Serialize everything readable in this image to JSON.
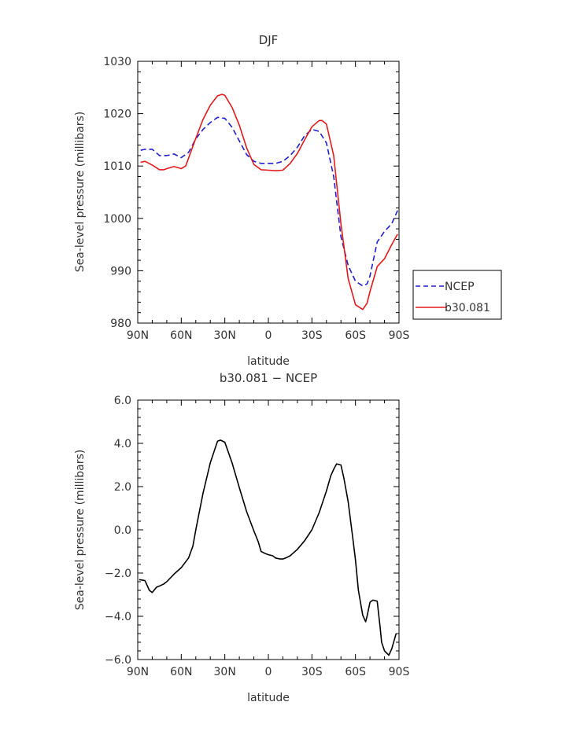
{
  "chart_data": [
    {
      "type": "line",
      "title": "DJF",
      "xlabel": "latitude",
      "ylabel": "Sea-level pressure (millibars)",
      "x_ticks": [
        "90N",
        "60N",
        "30N",
        "0",
        "30S",
        "60S",
        "90S"
      ],
      "xlim": [
        -90,
        90
      ],
      "ylim": [
        980,
        1030
      ],
      "y_ticks": [
        "980",
        "990",
        "1000",
        "1010",
        "1020",
        "1030"
      ],
      "grid": false,
      "legend_position": "right, outside plot",
      "series": [
        {
          "name": "NCEP",
          "color": "#1f1fcc",
          "style": "dashed",
          "x": [
            -88,
            -85,
            -80,
            -75,
            -70,
            -65,
            -60,
            -55,
            -50,
            -45,
            -40,
            -35,
            -30,
            -25,
            -20,
            -15,
            -10,
            -5,
            0,
            5,
            10,
            15,
            20,
            25,
            30,
            35,
            40,
            45,
            50,
            55,
            60,
            65,
            68,
            70,
            75,
            80,
            85,
            89
          ],
          "values": [
            1013.0,
            1013.2,
            1013.2,
            1012.0,
            1012.0,
            1012.3,
            1011.6,
            1012.6,
            1015.2,
            1017.0,
            1018.3,
            1019.3,
            1019.1,
            1017.4,
            1014.8,
            1012.2,
            1010.9,
            1010.5,
            1010.5,
            1010.5,
            1010.9,
            1012.0,
            1013.6,
            1015.8,
            1017.0,
            1016.6,
            1014.4,
            1008.0,
            996.5,
            991.0,
            988.0,
            987.1,
            987.5,
            989.0,
            995.5,
            997.5,
            999.0,
            1001.5
          ]
        },
        {
          "name": "b30.081",
          "color": "#e31a1c",
          "style": "solid",
          "x": [
            -88,
            -85,
            -80,
            -75,
            -72,
            -70,
            -65,
            -60,
            -57,
            -55,
            -50,
            -45,
            -40,
            -35,
            -32,
            -30,
            -25,
            -20,
            -15,
            -10,
            -5,
            0,
            5,
            10,
            15,
            20,
            25,
            30,
            35,
            37,
            40,
            45,
            50,
            55,
            60,
            65,
            68,
            70,
            75,
            80,
            85,
            89
          ],
          "values": [
            1010.7,
            1010.9,
            1010.2,
            1009.3,
            1009.3,
            1009.5,
            1009.9,
            1009.5,
            1010.0,
            1011.5,
            1015.3,
            1018.9,
            1021.6,
            1023.4,
            1023.7,
            1023.5,
            1021.2,
            1017.8,
            1013.5,
            1010.3,
            1009.3,
            1009.2,
            1009.1,
            1009.2,
            1010.5,
            1012.4,
            1015.0,
            1017.5,
            1018.7,
            1018.7,
            1018.0,
            1012.0,
            999.0,
            988.5,
            983.5,
            982.6,
            983.8,
            986.0,
            990.8,
            992.3,
            995.0,
            997.0
          ]
        }
      ]
    },
    {
      "type": "line",
      "title": "b30.081 − NCEP",
      "xlabel": "latitude",
      "ylabel": "Sea-level pressure (millibars)",
      "x_ticks": [
        "90N",
        "60N",
        "30N",
        "0",
        "30S",
        "60S",
        "90S"
      ],
      "xlim": [
        -90,
        90
      ],
      "ylim": [
        -6,
        6
      ],
      "y_ticks": [
        "−6.0",
        "−4.0",
        "−2.0",
        "0.0",
        "2.0",
        "4.0",
        "6.0"
      ],
      "grid": false,
      "series": [
        {
          "color": "#000000",
          "style": "solid",
          "x": [
            -89,
            -85,
            -82,
            -80,
            -77,
            -75,
            -72,
            -70,
            -65,
            -60,
            -55,
            -52,
            -50,
            -45,
            -40,
            -35,
            -33,
            -30,
            -25,
            -20,
            -15,
            -10,
            -7,
            -5,
            -2,
            0,
            3,
            5,
            8,
            10,
            12,
            15,
            20,
            25,
            30,
            35,
            40,
            43,
            45,
            47,
            50,
            52,
            55,
            58,
            60,
            62,
            65,
            67,
            68,
            70,
            72,
            75,
            77,
            78,
            80,
            83,
            85,
            88
          ],
          "values": [
            -2.3,
            -2.35,
            -2.8,
            -2.9,
            -2.65,
            -2.6,
            -2.5,
            -2.4,
            -2.05,
            -1.75,
            -1.3,
            -0.75,
            0.0,
            1.7,
            3.1,
            4.1,
            4.15,
            4.05,
            3.1,
            1.95,
            0.85,
            -0.05,
            -0.55,
            -1.0,
            -1.1,
            -1.15,
            -1.2,
            -1.3,
            -1.35,
            -1.35,
            -1.3,
            -1.2,
            -0.9,
            -0.5,
            0.0,
            0.8,
            1.8,
            2.5,
            2.8,
            3.05,
            3.0,
            2.4,
            1.3,
            -0.3,
            -1.4,
            -2.8,
            -3.95,
            -4.25,
            -4.0,
            -3.35,
            -3.25,
            -3.3,
            -4.5,
            -5.2,
            -5.6,
            -5.8,
            -5.5,
            -4.8
          ]
        }
      ]
    }
  ]
}
